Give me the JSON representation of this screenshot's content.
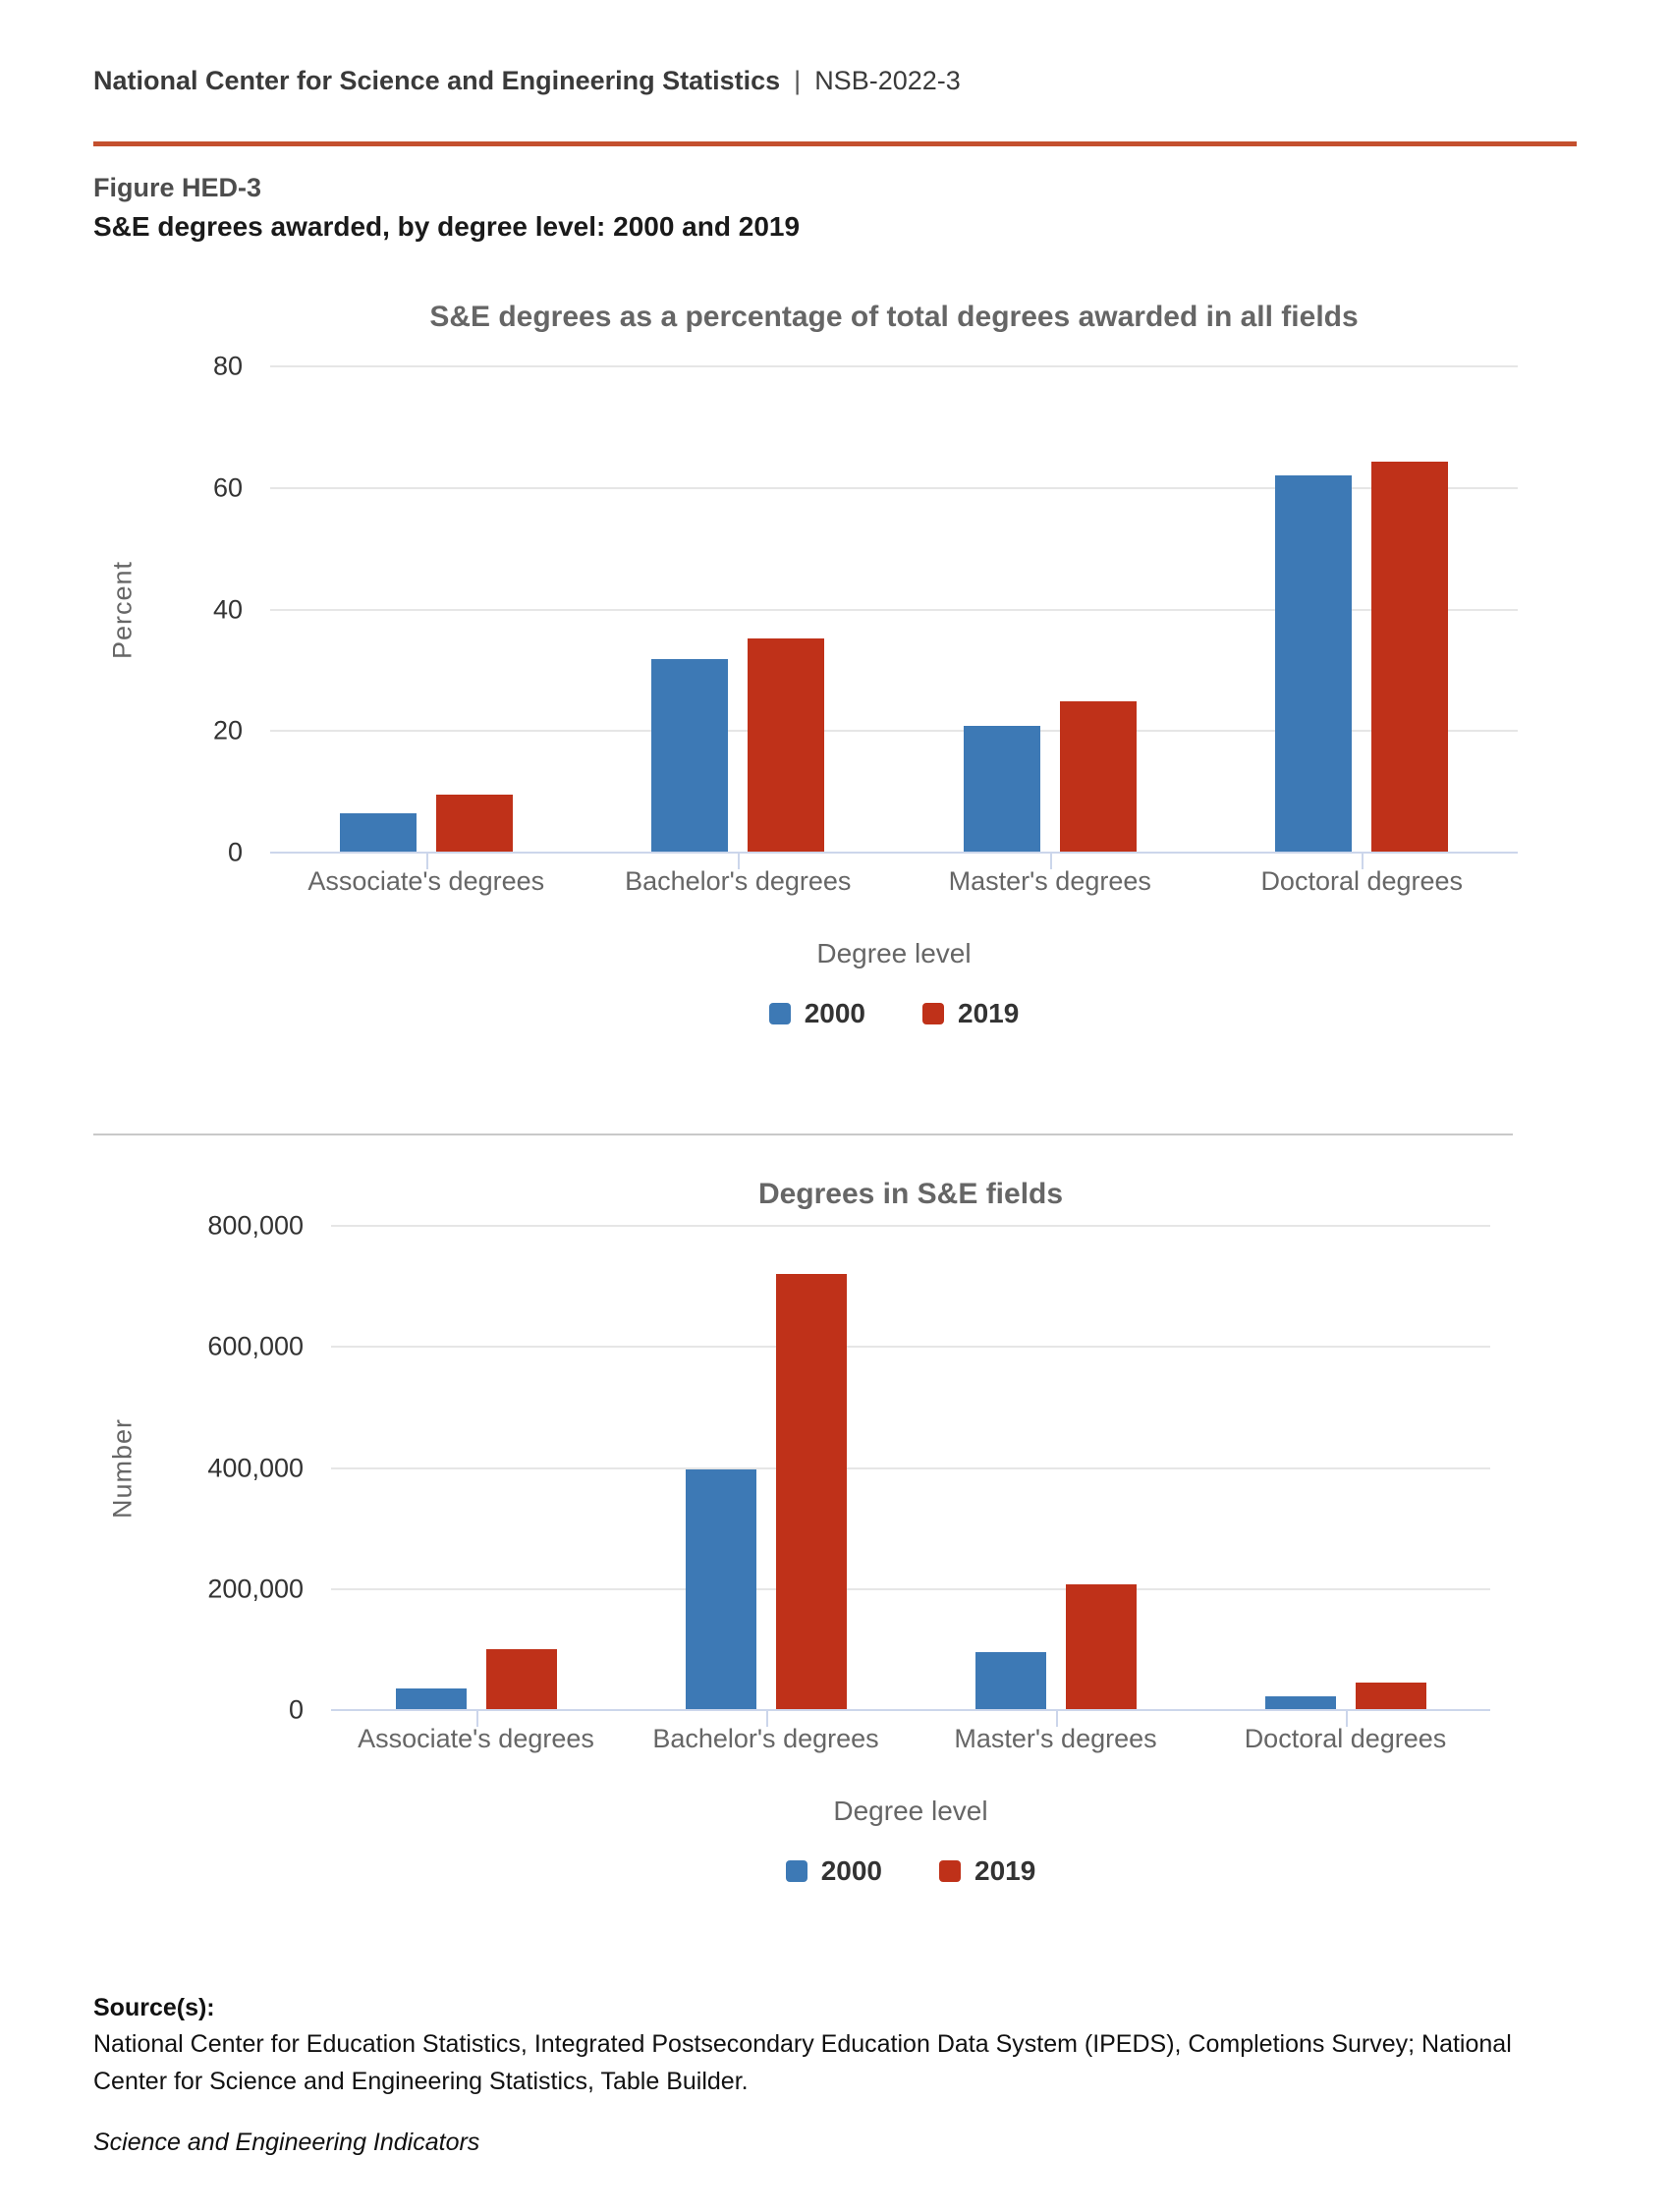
{
  "header": {
    "org": "National Center for Science and Engineering Statistics",
    "separator": "|",
    "report_id": "NSB-2022-3"
  },
  "figure": {
    "label": "Figure HED-3",
    "title": "S&E degrees awarded, by degree level: 2000 and 2019"
  },
  "palette": {
    "series_2000": "#3D79B5",
    "series_2019": "#BF3119",
    "brand_rule": "#C4502E",
    "gridline": "#E6E6E6",
    "axis_line": "#CCD6EB",
    "title_text": "#666666",
    "tick_text": "#333333"
  },
  "chart_data": [
    {
      "type": "bar",
      "title": "S&E degrees as a percentage of total degrees awarded in all fields",
      "categories": [
        "Associate's degrees",
        "Bachelor's degrees",
        "Master's degrees",
        "Doctoral degrees"
      ],
      "series": [
        {
          "name": "2000",
          "color": "#3D79B5",
          "values": [
            6.5,
            31.8,
            20.9,
            62.0
          ]
        },
        {
          "name": "2019",
          "color": "#BF3119",
          "values": [
            9.6,
            35.3,
            24.9,
            64.3
          ]
        }
      ],
      "xlabel": "Degree level",
      "ylabel": "Percent",
      "ylim": [
        0,
        80
      ],
      "yticks": [
        {
          "value": 0,
          "label": "0"
        },
        {
          "value": 20,
          "label": "20"
        },
        {
          "value": 40,
          "label": "40"
        },
        {
          "value": 60,
          "label": "60"
        },
        {
          "value": 80,
          "label": "80"
        }
      ],
      "grid": true,
      "legend_position": "bottom"
    },
    {
      "type": "bar",
      "title": "Degrees in S&E fields",
      "categories": [
        "Associate's degrees",
        "Bachelor's degrees",
        "Master's degrees",
        "Doctoral degrees"
      ],
      "series": [
        {
          "name": "2000",
          "color": "#3D79B5",
          "values": [
            35000,
            398000,
            95000,
            23000
          ]
        },
        {
          "name": "2019",
          "color": "#BF3119",
          "values": [
            101000,
            721000,
            207000,
            45000
          ]
        }
      ],
      "xlabel": "Degree level",
      "ylabel": "Number",
      "ylim": [
        0,
        800000
      ],
      "yticks": [
        {
          "value": 0,
          "label": "0"
        },
        {
          "value": 200000,
          "label": "200,000"
        },
        {
          "value": 400000,
          "label": "400,000"
        },
        {
          "value": 600000,
          "label": "600,000"
        },
        {
          "value": 800000,
          "label": "800,000"
        }
      ],
      "grid": true,
      "legend_position": "bottom"
    }
  ],
  "source": {
    "heading": "Source(s):",
    "text": "National Center for Education Statistics, Integrated Postsecondary Education Data System (IPEDS), Completions Survey; National Center for Science and Engineering Statistics, Table Builder.",
    "footer": "Science and Engineering Indicators"
  }
}
